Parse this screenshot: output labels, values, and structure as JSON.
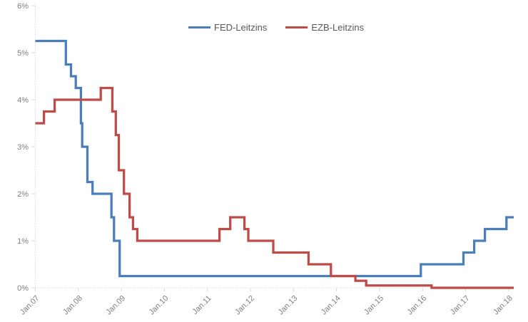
{
  "legend": {
    "items": [
      {
        "label": "FED-Leitzins",
        "color": "#4A7EBB"
      },
      {
        "label": "EZB-Leitzins",
        "color": "#BE4B48"
      }
    ]
  },
  "chart_data": {
    "type": "line",
    "subtype": "step",
    "title": "",
    "xlabel": "",
    "ylabel": "",
    "grid": "off",
    "legend_position": "top-center",
    "x_axis": {
      "range_years": [
        2007.0,
        2018.2
      ],
      "ticks": [
        {
          "t": 2007,
          "label": "Jan.07"
        },
        {
          "t": 2008,
          "label": "Jan.08"
        },
        {
          "t": 2009,
          "label": "Jan.09"
        },
        {
          "t": 2010,
          "label": "Jan.10"
        },
        {
          "t": 2011,
          "label": "Jan.11"
        },
        {
          "t": 2012,
          "label": "Jan.12"
        },
        {
          "t": 2013,
          "label": "Jan.13"
        },
        {
          "t": 2014,
          "label": "Jan.14"
        },
        {
          "t": 2015,
          "label": "Jan.15"
        },
        {
          "t": 2016,
          "label": "Jan.16"
        },
        {
          "t": 2017,
          "label": "Jan.17"
        },
        {
          "t": 2018,
          "label": "Jan.18"
        }
      ]
    },
    "y_axis": {
      "range": [
        0,
        6
      ],
      "unit": "percent",
      "ticks": [
        {
          "v": 0,
          "label": "0%"
        },
        {
          "v": 1,
          "label": "1%"
        },
        {
          "v": 2,
          "label": "2%"
        },
        {
          "v": 3,
          "label": "3%"
        },
        {
          "v": 4,
          "label": "4%"
        },
        {
          "v": 5,
          "label": "5%"
        },
        {
          "v": 6,
          "label": "6%"
        }
      ]
    },
    "series": [
      {
        "name": "FED-Leitzins",
        "color": "#4A7EBB",
        "end": 2018.12,
        "breakpoints": [
          [
            2007.0,
            5.25
          ],
          [
            2007.71,
            4.75
          ],
          [
            2007.83,
            4.5
          ],
          [
            2007.94,
            4.25
          ],
          [
            2008.06,
            3.5
          ],
          [
            2008.09,
            3.0
          ],
          [
            2008.21,
            2.25
          ],
          [
            2008.33,
            2.0
          ],
          [
            2008.77,
            1.5
          ],
          [
            2008.83,
            1.0
          ],
          [
            2008.96,
            0.25
          ],
          [
            2015.96,
            0.5
          ],
          [
            2016.95,
            0.75
          ],
          [
            2017.2,
            1.0
          ],
          [
            2017.45,
            1.25
          ],
          [
            2017.95,
            1.5
          ]
        ]
      },
      {
        "name": "EZB-Leitzins",
        "color": "#BE4B48",
        "end": 2018.12,
        "breakpoints": [
          [
            2007.0,
            3.5
          ],
          [
            2007.2,
            3.75
          ],
          [
            2007.45,
            4.0
          ],
          [
            2008.52,
            4.25
          ],
          [
            2008.79,
            3.75
          ],
          [
            2008.87,
            3.25
          ],
          [
            2008.94,
            2.5
          ],
          [
            2009.06,
            2.0
          ],
          [
            2009.19,
            1.5
          ],
          [
            2009.27,
            1.25
          ],
          [
            2009.37,
            1.0
          ],
          [
            2011.28,
            1.25
          ],
          [
            2011.53,
            1.5
          ],
          [
            2011.86,
            1.25
          ],
          [
            2011.95,
            1.0
          ],
          [
            2012.53,
            0.75
          ],
          [
            2013.35,
            0.5
          ],
          [
            2013.87,
            0.25
          ],
          [
            2014.44,
            0.15
          ],
          [
            2014.69,
            0.05
          ],
          [
            2016.21,
            0.0
          ]
        ]
      }
    ],
    "axis_color": "#D9D9D9",
    "tick_label_color": "#808080"
  }
}
